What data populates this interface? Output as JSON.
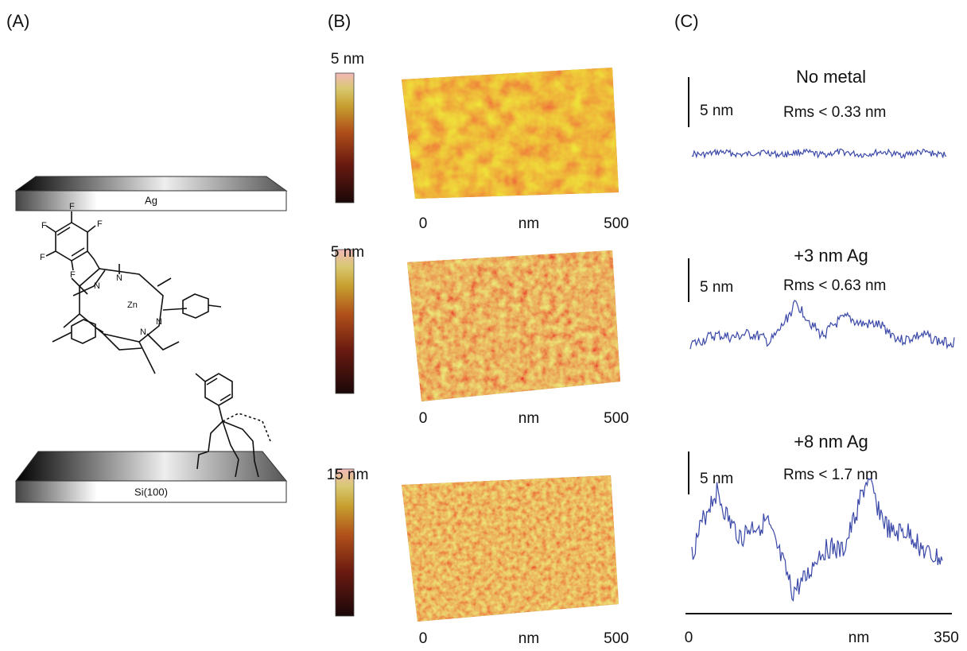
{
  "panels": {
    "a": {
      "label": "(A)",
      "top_electrode": "Ag",
      "substrate": "Si(100)",
      "atoms": [
        "F",
        "F",
        "F",
        "F",
        "F",
        "N",
        "N",
        "N",
        "N",
        "Zn"
      ]
    },
    "b": {
      "label": "(B)",
      "images": [
        {
          "scale": "5 nm",
          "x_start": "0",
          "x_unit": "nm",
          "x_end": "500"
        },
        {
          "scale": "5 nm",
          "x_start": "0",
          "x_unit": "nm",
          "x_end": "500"
        },
        {
          "scale": "15 nm",
          "x_start": "0",
          "x_unit": "nm",
          "x_end": "500"
        }
      ]
    },
    "c": {
      "label": "(C)",
      "profiles": [
        {
          "title": "No metal",
          "scale_bar": "5 nm",
          "rms": "Rms  < 0.33 nm"
        },
        {
          "title": "+3 nm Ag",
          "scale_bar": "5 nm",
          "rms": "Rms  < 0.63 nm"
        },
        {
          "title": "+8 nm Ag",
          "scale_bar": "5 nm",
          "rms": "Rms  < 1.7 nm"
        }
      ],
      "x_start": "0",
      "x_unit": "nm",
      "x_end": "350"
    }
  }
}
